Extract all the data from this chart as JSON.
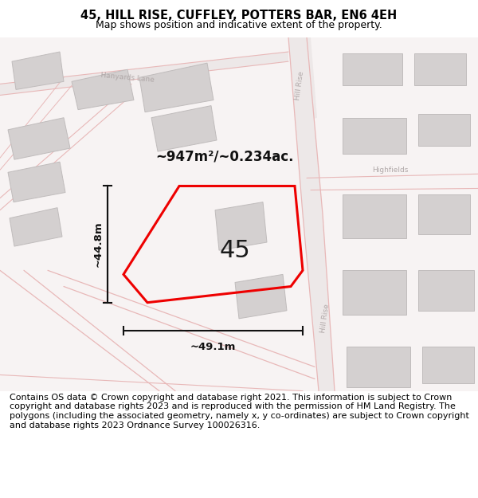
{
  "title": "45, HILL RISE, CUFFLEY, POTTERS BAR, EN6 4EH",
  "subtitle": "Map shows position and indicative extent of the property.",
  "footer": "Contains OS data © Crown copyright and database right 2021. This information is subject to Crown copyright and database rights 2023 and is reproduced with the permission of HM Land Registry. The polygons (including the associated geometry, namely x, y co-ordinates) are subject to Crown copyright and database rights 2023 Ordnance Survey 100026316.",
  "title_fontsize": 10.5,
  "subtitle_fontsize": 9,
  "footer_fontsize": 8,
  "area_label": "~947m²/~0.234ac.",
  "plot_number": "45",
  "dim_width": "~49.1m",
  "dim_height": "~44.8m",
  "map_bg": "#f7f3f3",
  "building_fill": "#d4d0d0",
  "building_edge": "#c0bcbc",
  "road_fill": "#ede8e8",
  "plot_color": "#ee0000",
  "dim_color": "#111111",
  "road_label_color": "#b0a8a8",
  "road_stroke": "#e8b8b8",
  "road_stroke2": "#dda8a8"
}
